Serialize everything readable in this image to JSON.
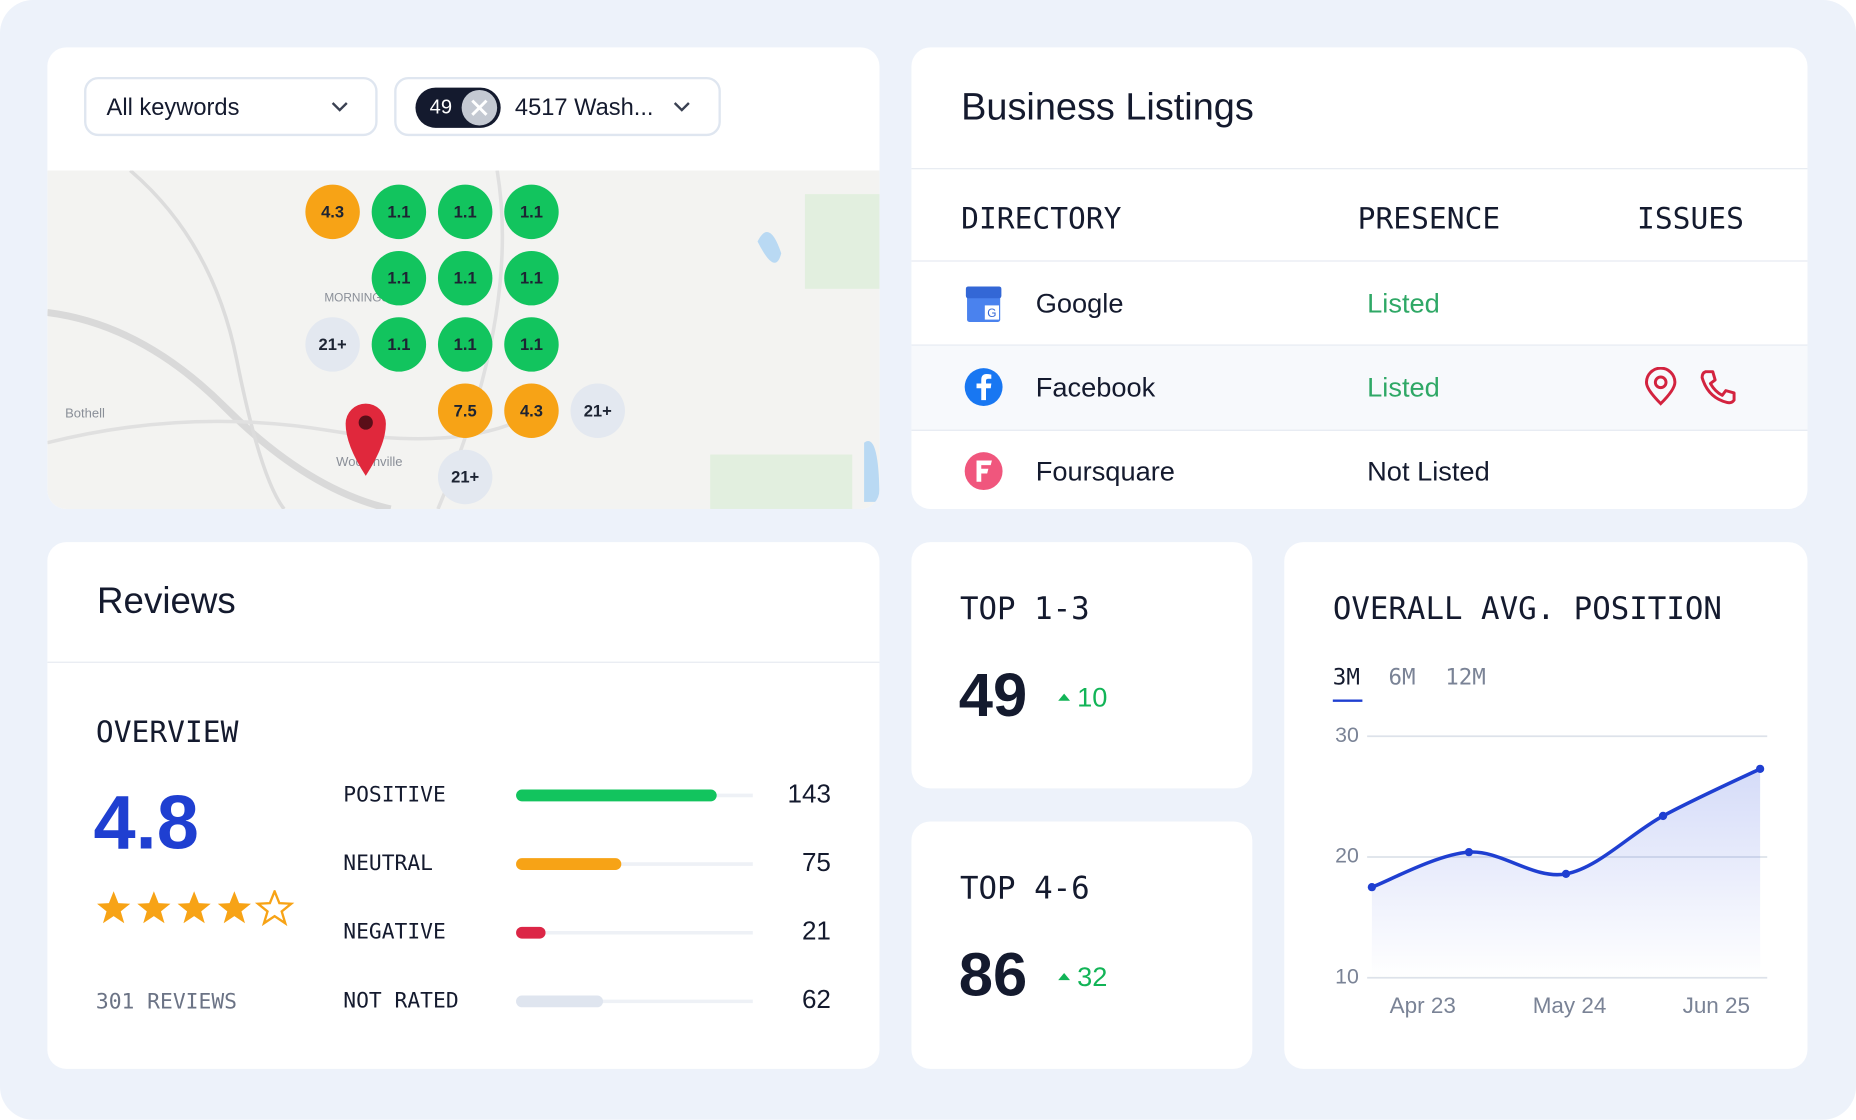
{
  "filters": {
    "keyword": "All keywords",
    "location_count": "49",
    "location": "4517 Wash..."
  },
  "map": {
    "place_labels": [
      "MORNINGSIDE",
      "Bothell",
      "Woodinville"
    ],
    "markers": [
      {
        "label": "4.3",
        "color": "#f7a316"
      },
      {
        "label": "1.1",
        "color": "#12c45e"
      },
      {
        "label": "1.1",
        "color": "#12c45e"
      },
      {
        "label": "1.1",
        "color": "#12c45e"
      },
      {
        "label": "1.1",
        "color": "#12c45e"
      },
      {
        "label": "1.1",
        "color": "#12c45e"
      },
      {
        "label": "1.1",
        "color": "#12c45e"
      },
      {
        "label": "21+",
        "color": "#e3e8f0"
      },
      {
        "label": "1.1",
        "color": "#12c45e"
      },
      {
        "label": "1.1",
        "color": "#12c45e"
      },
      {
        "label": "1.1",
        "color": "#12c45e"
      },
      {
        "label": "7.5",
        "color": "#f7a316"
      },
      {
        "label": "4.3",
        "color": "#f7a316"
      },
      {
        "label": "21+",
        "color": "#e3e8f0"
      },
      {
        "label": "21+",
        "color": "#e3e8f0"
      }
    ]
  },
  "listings": {
    "title": "Business Listings",
    "columns": [
      "DIRECTORY",
      "PRESENCE",
      "ISSUES"
    ],
    "rows": [
      {
        "directory": "Google",
        "presence": "Listed"
      },
      {
        "directory": "Facebook",
        "presence": "Listed"
      },
      {
        "directory": "Foursquare",
        "presence": "Not Listed"
      }
    ]
  },
  "reviews": {
    "title": "Reviews",
    "overview": "OVERVIEW",
    "rating": "4.8",
    "total": "301 REVIEWS",
    "breakdown": [
      {
        "label": "POSITIVE",
        "count": 143,
        "color": "#12c45e"
      },
      {
        "label": "NEUTRAL",
        "count": 75,
        "color": "#f7a316"
      },
      {
        "label": "NEGATIVE",
        "count": 21,
        "color": "#dc2646"
      },
      {
        "label": "NOT RATED",
        "count": 62,
        "color": "#dfe5ef"
      }
    ]
  },
  "kpis": [
    {
      "title": "TOP 1-3",
      "value": 49,
      "delta": 10
    },
    {
      "title": "TOP 4-6",
      "value": 86,
      "delta": 32
    }
  ],
  "chart_data": {
    "type": "line",
    "title": "OVERALL AVG. POSITION",
    "tabs": [
      "3M",
      "6M",
      "12M"
    ],
    "x_labels": [
      "Apr 23",
      "May 24",
      "Jun 25"
    ],
    "series": [
      {
        "color": "#1f3fd1",
        "values": [
          17.5,
          20.4,
          18.6,
          23.4,
          27.3
        ]
      }
    ],
    "ylim": [
      10,
      30
    ],
    "yticks": [
      10,
      20,
      30
    ],
    "grid": true
  }
}
